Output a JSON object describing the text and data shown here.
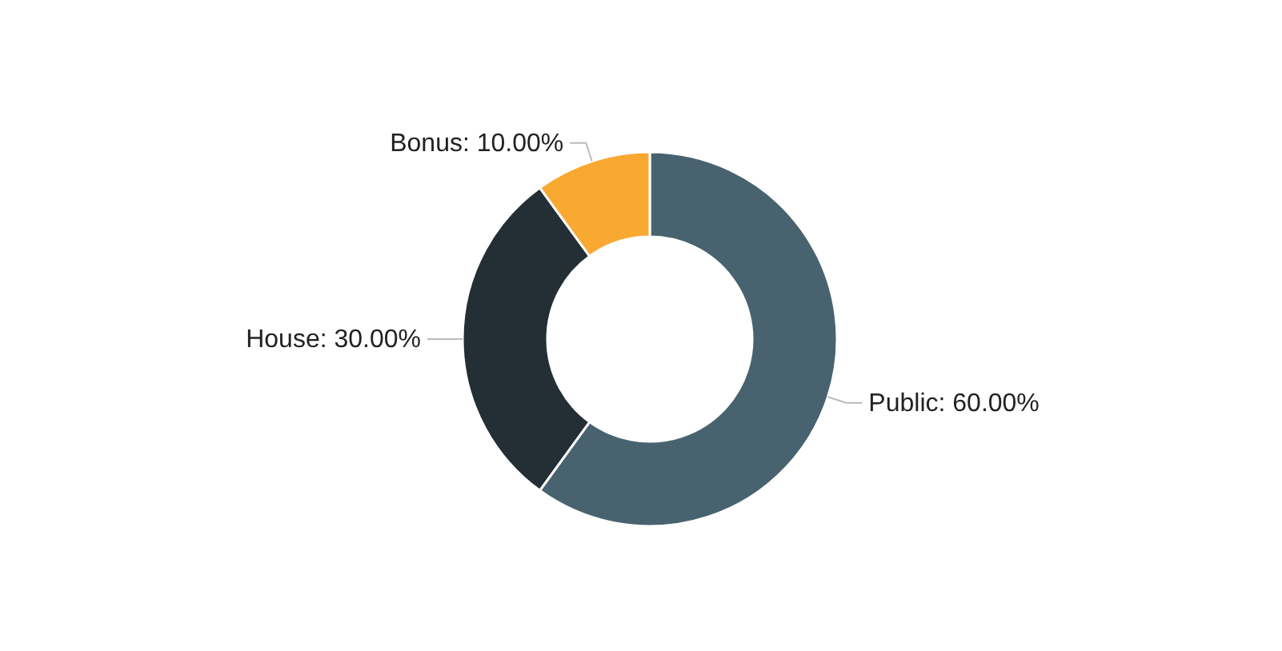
{
  "chart_data": {
    "type": "donut",
    "categories": [
      "Public",
      "House",
      "Bonus"
    ],
    "values": [
      60,
      30,
      10
    ],
    "colors": [
      "#48636f",
      "#232f35",
      "#f9a932"
    ],
    "value_labels": [
      "60.00%",
      "30.00%",
      "10.00%"
    ]
  }
}
